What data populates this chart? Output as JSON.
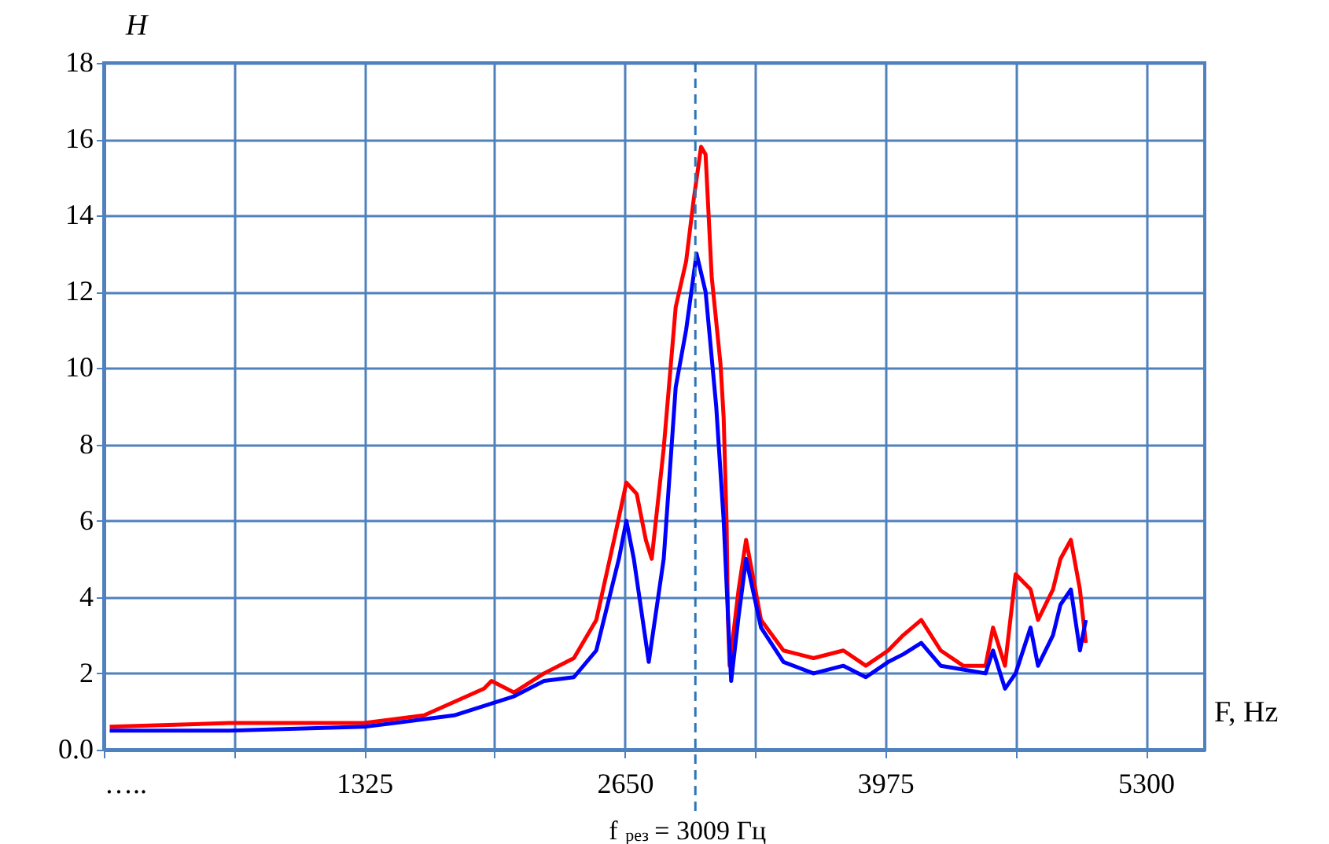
{
  "chart_data": {
    "type": "line",
    "xlabel": "F, Hz",
    "ylabel": "H",
    "xlim": [
      0,
      5600
    ],
    "ylim": [
      0,
      18
    ],
    "xticks": [
      {
        "value": 0,
        "label": "….."
      },
      {
        "value": 662.5,
        "label": null
      },
      1325,
      {
        "value": 1987.5,
        "label": null
      },
      2650,
      {
        "value": 3312.5,
        "label": null
      },
      3975,
      {
        "value": 4637.5,
        "label": null
      },
      5300
    ],
    "yticks": [
      {
        "value": 0,
        "label": "0.0"
      },
      2,
      4,
      6,
      8,
      10,
      12,
      14,
      16,
      18
    ],
    "grid": true,
    "legend": false,
    "line_style": "solid",
    "marker": "none",
    "ref_lines": [
      {
        "axis": "x",
        "value": 3009,
        "label": "f$_{рез}$ = 3009 Гц",
        "line_style": "dashed",
        "color": "#2e75b6"
      }
    ],
    "series": [
      {
        "color": "#ff0000",
        "x": [
          30,
          640,
          1325,
          1629,
          1934,
          1972,
          2087,
          2239,
          2391,
          2505,
          2604,
          2658,
          2711,
          2757,
          2787,
          2848,
          2909,
          2962,
          3000,
          3038,
          3061,
          3092,
          3137,
          3153,
          3168,
          3175,
          3183,
          3229,
          3267,
          3343,
          3457,
          3610,
          3762,
          3876,
          3990,
          4066,
          4158,
          4257,
          4371,
          4485,
          4523,
          4584,
          4638,
          4714,
          4752,
          4828,
          4866,
          4919,
          4965,
          4995
        ],
        "values": [
          0.6,
          0.7,
          0.7,
          0.9,
          1.6,
          1.8,
          1.5,
          2.0,
          2.4,
          3.4,
          5.7,
          7.0,
          6.7,
          5.5,
          5.0,
          7.9,
          11.6,
          12.8,
          14.4,
          15.8,
          15.6,
          12.4,
          10.1,
          8.7,
          5.9,
          3.4,
          2.2,
          4.2,
          5.5,
          3.4,
          2.6,
          2.4,
          2.6,
          2.2,
          2.6,
          3.0,
          3.4,
          2.6,
          2.2,
          2.2,
          3.2,
          2.2,
          4.6,
          4.2,
          3.4,
          4.2,
          5.0,
          5.5,
          4.2,
          2.8
        ]
      },
      {
        "color": "#0000ff",
        "x": [
          30,
          640,
          1325,
          1782,
          2087,
          2239,
          2391,
          2505,
          2620,
          2658,
          2696,
          2772,
          2848,
          2909,
          2962,
          3015,
          3061,
          3115,
          3153,
          3175,
          3191,
          3229,
          3267,
          3343,
          3457,
          3610,
          3762,
          3876,
          3990,
          4066,
          4158,
          4257,
          4371,
          4485,
          4523,
          4584,
          4638,
          4714,
          4752,
          4828,
          4866,
          4919,
          4965,
          4995
        ],
        "values": [
          0.5,
          0.5,
          0.6,
          0.9,
          1.4,
          1.8,
          1.9,
          2.6,
          5.0,
          6.0,
          5.0,
          2.3,
          5.0,
          9.5,
          11.0,
          13.0,
          12.0,
          9.0,
          6.0,
          3.5,
          1.8,
          3.5,
          5.0,
          3.2,
          2.3,
          2.0,
          2.2,
          1.9,
          2.3,
          2.5,
          2.8,
          2.2,
          2.1,
          2.0,
          2.6,
          1.6,
          2.0,
          3.2,
          2.2,
          3.0,
          3.8,
          4.2,
          2.6,
          3.4
        ]
      }
    ]
  }
}
